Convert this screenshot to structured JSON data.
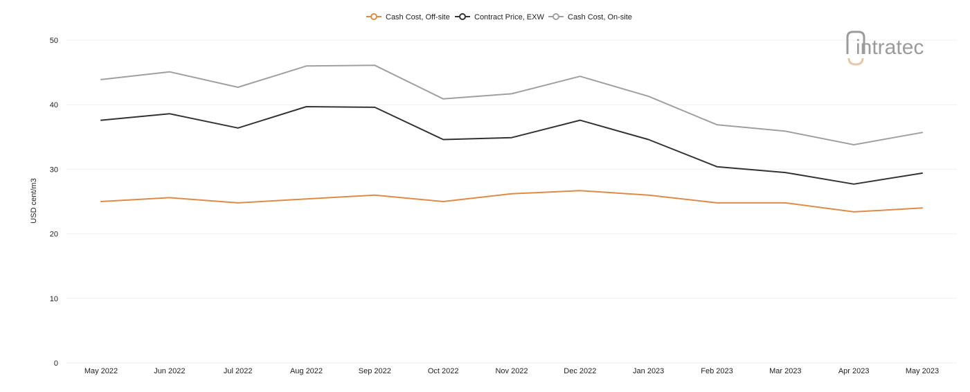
{
  "chart_data": {
    "type": "line",
    "title": "",
    "xlabel": "",
    "ylabel": "USD cent/m3",
    "ylim": [
      0,
      50
    ],
    "yticks": [
      0,
      10,
      20,
      30,
      40,
      50
    ],
    "grid": true,
    "legend_position": "top-center",
    "categories": [
      "May 2022",
      "Jun 2022",
      "Jul 2022",
      "Aug 2022",
      "Sep 2022",
      "Oct 2022",
      "Nov 2022",
      "Dec 2022",
      "Jan 2023",
      "Feb 2023",
      "Mar 2023",
      "Apr 2023",
      "May 2023"
    ],
    "series": [
      {
        "name": "Cash Cost, Off-site",
        "color": "#e08a45",
        "values": [
          25.0,
          25.6,
          24.8,
          25.4,
          26.0,
          25.0,
          26.2,
          26.7,
          26.0,
          24.8,
          24.8,
          23.4,
          24.0
        ]
      },
      {
        "name": "Contract Price, EXW",
        "color": "#333333",
        "values": [
          37.6,
          38.6,
          36.4,
          39.7,
          39.6,
          34.6,
          34.9,
          37.6,
          34.6,
          30.4,
          29.5,
          27.7,
          29.4
        ]
      },
      {
        "name": "Cash Cost, On-site",
        "color": "#a0a0a0",
        "values": [
          43.9,
          45.1,
          42.7,
          46.0,
          46.1,
          40.9,
          41.7,
          44.4,
          41.3,
          36.9,
          35.9,
          33.8,
          35.7
        ]
      }
    ]
  },
  "logo": {
    "text": "intratec",
    "icon": "intratec-logo-icon",
    "color": "#9b9b9b",
    "accent": "#e6c7a8"
  }
}
